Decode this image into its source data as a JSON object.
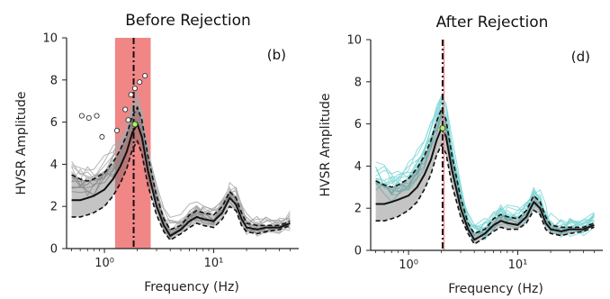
{
  "chart_data": [
    {
      "type": "line",
      "title": "Before Rejection",
      "panel_label": "(b)",
      "xlabel": "Frequency (Hz)",
      "ylabel": "HVSR Amplitude",
      "xscale": "log",
      "xlim": [
        0.45,
        60
      ],
      "ylim": [
        0,
        10
      ],
      "yticks": [
        0,
        2,
        4,
        6,
        8,
        10
      ],
      "xticks": [
        {
          "value": 1,
          "label": "10⁰"
        },
        {
          "value": 10,
          "label": "10¹"
        }
      ],
      "trace_color": "#a8a8a8",
      "highlight_color": "#f08080",
      "rejection_band": [
        1.25,
        2.65
      ],
      "peak_frequency": 1.85,
      "median_peak": {
        "x": 1.9,
        "y": 5.9
      },
      "series": [
        {
          "x": [
            0.5,
            0.6,
            0.7,
            0.8,
            1.0,
            1.2,
            1.4,
            1.6,
            1.8,
            2.0,
            2.2,
            2.5,
            3.0,
            3.5,
            4.0,
            5.0,
            6.0,
            7.0,
            8.0,
            10,
            12,
            14,
            16,
            18,
            20,
            25,
            30,
            40,
            50
          ],
          "values": [
            2.3,
            2.3,
            2.4,
            2.5,
            2.8,
            3.3,
            3.9,
            4.6,
            5.5,
            5.9,
            5.3,
            3.7,
            2.0,
            1.1,
            0.6,
            0.9,
            1.3,
            1.5,
            1.4,
            1.3,
            1.7,
            2.4,
            2.1,
            1.4,
            1.0,
            0.9,
            1.0,
            1.0,
            1.2
          ]
        },
        {
          "x": [
            0.5,
            0.6,
            0.7,
            0.8,
            1.0,
            1.2,
            1.4,
            1.6,
            1.8,
            2.0,
            2.2,
            2.5,
            3.0,
            3.5,
            4.0,
            5.0,
            6.0,
            7.0,
            8.0,
            10,
            12,
            14,
            16,
            18,
            20,
            25,
            30,
            40,
            50
          ],
          "values": [
            3.5,
            3.3,
            3.2,
            3.3,
            3.6,
            4.1,
            4.7,
            5.4,
            6.3,
            6.7,
            6.1,
            4.4,
            2.5,
            1.4,
            0.9,
            1.1,
            1.6,
            1.8,
            1.7,
            1.6,
            2.0,
            2.7,
            2.4,
            1.7,
            1.2,
            1.1,
            1.1,
            1.1,
            1.3
          ]
        },
        {
          "x": [
            0.5,
            0.6,
            0.7,
            0.8,
            1.0,
            1.2,
            1.4,
            1.6,
            1.8,
            2.0,
            2.2,
            2.5,
            3.0,
            3.5,
            4.0,
            5.0,
            6.0,
            7.0,
            8.0,
            10,
            12,
            14,
            16,
            18,
            20,
            25,
            30,
            40,
            50
          ],
          "values": [
            1.5,
            1.5,
            1.6,
            1.7,
            2.0,
            2.5,
            3.1,
            3.8,
            4.7,
            5.1,
            4.5,
            3.0,
            1.6,
            0.8,
            0.4,
            0.7,
            1.0,
            1.2,
            1.1,
            1.0,
            1.4,
            2.0,
            1.8,
            1.1,
            0.8,
            0.7,
            0.8,
            0.9,
            1.1
          ]
        }
      ],
      "outliers": [
        {
          "x": 0.62,
          "y": 6.3
        },
        {
          "x": 0.72,
          "y": 6.2
        },
        {
          "x": 0.85,
          "y": 6.3
        },
        {
          "x": 0.95,
          "y": 5.3
        },
        {
          "x": 1.3,
          "y": 5.6
        },
        {
          "x": 1.55,
          "y": 6.6
        },
        {
          "x": 1.75,
          "y": 7.3
        },
        {
          "x": 1.9,
          "y": 7.6
        },
        {
          "x": 2.1,
          "y": 7.9
        },
        {
          "x": 2.35,
          "y": 8.2
        },
        {
          "x": 1.65,
          "y": 6.1
        }
      ]
    },
    {
      "type": "line",
      "title": "After Rejection",
      "panel_label": "(d)",
      "xlabel": "Frequency (Hz)",
      "ylabel": "HVSR Amplitude",
      "xscale": "log",
      "xlim": [
        0.45,
        60
      ],
      "ylim": [
        0,
        10
      ],
      "yticks": [
        0,
        2,
        4,
        6,
        8,
        10
      ],
      "xticks": [
        {
          "value": 1,
          "label": "10⁰"
        },
        {
          "value": 10,
          "label": "10¹"
        }
      ],
      "trace_color": "#7fd6d6",
      "highlight_color": "#f08080",
      "peak_frequency": 2.05,
      "median_peak": {
        "x": 2.05,
        "y": 5.8
      },
      "series": [
        {
          "x": [
            0.5,
            0.6,
            0.7,
            0.8,
            1.0,
            1.2,
            1.4,
            1.6,
            1.8,
            2.0,
            2.2,
            2.5,
            3.0,
            3.5,
            4.0,
            5.0,
            6.0,
            7.0,
            8.0,
            10,
            12,
            14,
            16,
            18,
            20,
            25,
            30,
            40,
            50
          ],
          "values": [
            2.2,
            2.2,
            2.3,
            2.4,
            2.6,
            3.0,
            3.6,
            4.3,
            5.2,
            5.8,
            5.4,
            3.8,
            2.0,
            1.0,
            0.5,
            0.8,
            1.2,
            1.4,
            1.3,
            1.2,
            1.6,
            2.3,
            2.0,
            1.3,
            1.0,
            0.9,
            1.0,
            1.0,
            1.2
          ]
        },
        {
          "x": [
            0.5,
            0.6,
            0.7,
            0.8,
            1.0,
            1.2,
            1.4,
            1.6,
            1.8,
            2.0,
            2.2,
            2.5,
            3.0,
            3.5,
            4.0,
            5.0,
            6.0,
            7.0,
            8.0,
            10,
            12,
            14,
            16,
            18,
            20,
            25,
            30,
            40,
            50
          ],
          "values": [
            3.3,
            3.1,
            3.0,
            3.1,
            3.4,
            3.9,
            4.5,
            5.2,
            6.1,
            6.7,
            6.2,
            4.5,
            2.5,
            1.3,
            0.8,
            1.0,
            1.5,
            1.7,
            1.6,
            1.5,
            1.9,
            2.6,
            2.3,
            1.6,
            1.2,
            1.1,
            1.1,
            1.1,
            1.3
          ]
        },
        {
          "x": [
            0.5,
            0.6,
            0.7,
            0.8,
            1.0,
            1.2,
            1.4,
            1.6,
            1.8,
            2.0,
            2.2,
            2.5,
            3.0,
            3.5,
            4.0,
            5.0,
            6.0,
            7.0,
            8.0,
            10,
            12,
            14,
            16,
            18,
            20,
            25,
            30,
            40,
            50
          ],
          "values": [
            1.4,
            1.4,
            1.5,
            1.6,
            1.9,
            2.3,
            2.9,
            3.6,
            4.5,
            5.0,
            4.6,
            3.1,
            1.6,
            0.8,
            0.3,
            0.6,
            0.9,
            1.1,
            1.0,
            1.0,
            1.3,
            1.9,
            1.7,
            1.0,
            0.8,
            0.7,
            0.8,
            0.9,
            1.1
          ]
        }
      ],
      "outliers": []
    }
  ]
}
